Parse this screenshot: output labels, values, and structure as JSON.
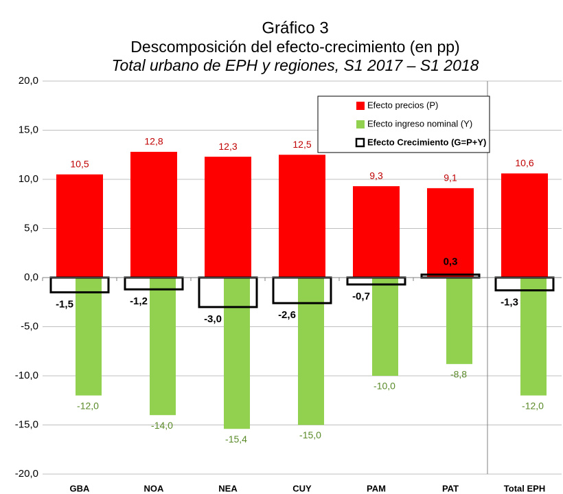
{
  "chart_data": {
    "type": "bar",
    "title": "Gráfico 3",
    "subtitle": "Descomposición del efecto-crecimiento (en pp)",
    "subtitle2": "Total urbano de EPH y regiones, S1 2017 – S1 2018",
    "categories": [
      "GBA",
      "NOA",
      "NEA",
      "CUY",
      "PAM",
      "PAT",
      "Total EPH"
    ],
    "series": [
      {
        "name": "Efecto precios (P)",
        "color": "#ff0000",
        "values": [
          10.5,
          12.8,
          12.3,
          12.5,
          9.3,
          9.1,
          10.6
        ],
        "value_labels": [
          "10,5",
          "12,8",
          "12,3",
          "12,5",
          "9,3",
          "9,1",
          "10,6"
        ]
      },
      {
        "name": "Efecto ingreso nominal (Y)",
        "color": "#92d050",
        "values": [
          -12.0,
          -14.0,
          -15.4,
          -15.0,
          -10.0,
          -8.8,
          -12.0
        ],
        "value_labels": [
          "-12,0",
          "-14,0",
          "-15,4",
          "-15,0",
          "-10,0",
          "-8,8",
          "-12,0"
        ]
      },
      {
        "name": "Efecto Crecimiento (G=P+Y)",
        "color": "#000000",
        "values": [
          -1.5,
          -1.2,
          -3.0,
          -2.6,
          -0.7,
          0.3,
          -1.3
        ],
        "value_labels": [
          "-1,5",
          "-1,2",
          "-3,0",
          "-2,6",
          "-0,7",
          "0,3",
          "-1,3"
        ]
      }
    ],
    "ylim": [
      -20,
      20
    ],
    "yticks": [
      {
        "value": -20,
        "label": "-20,0"
      },
      {
        "value": -15,
        "label": "-15,0"
      },
      {
        "value": -10,
        "label": "-10,0"
      },
      {
        "value": -5,
        "label": "-5,0"
      },
      {
        "value": 0,
        "label": "0,0"
      },
      {
        "value": 5,
        "label": "5,0"
      },
      {
        "value": 10,
        "label": "10,0"
      },
      {
        "value": 15,
        "label": "15,0"
      },
      {
        "value": 20,
        "label": "20,0"
      }
    ],
    "grid": true,
    "legend": "upper right"
  }
}
